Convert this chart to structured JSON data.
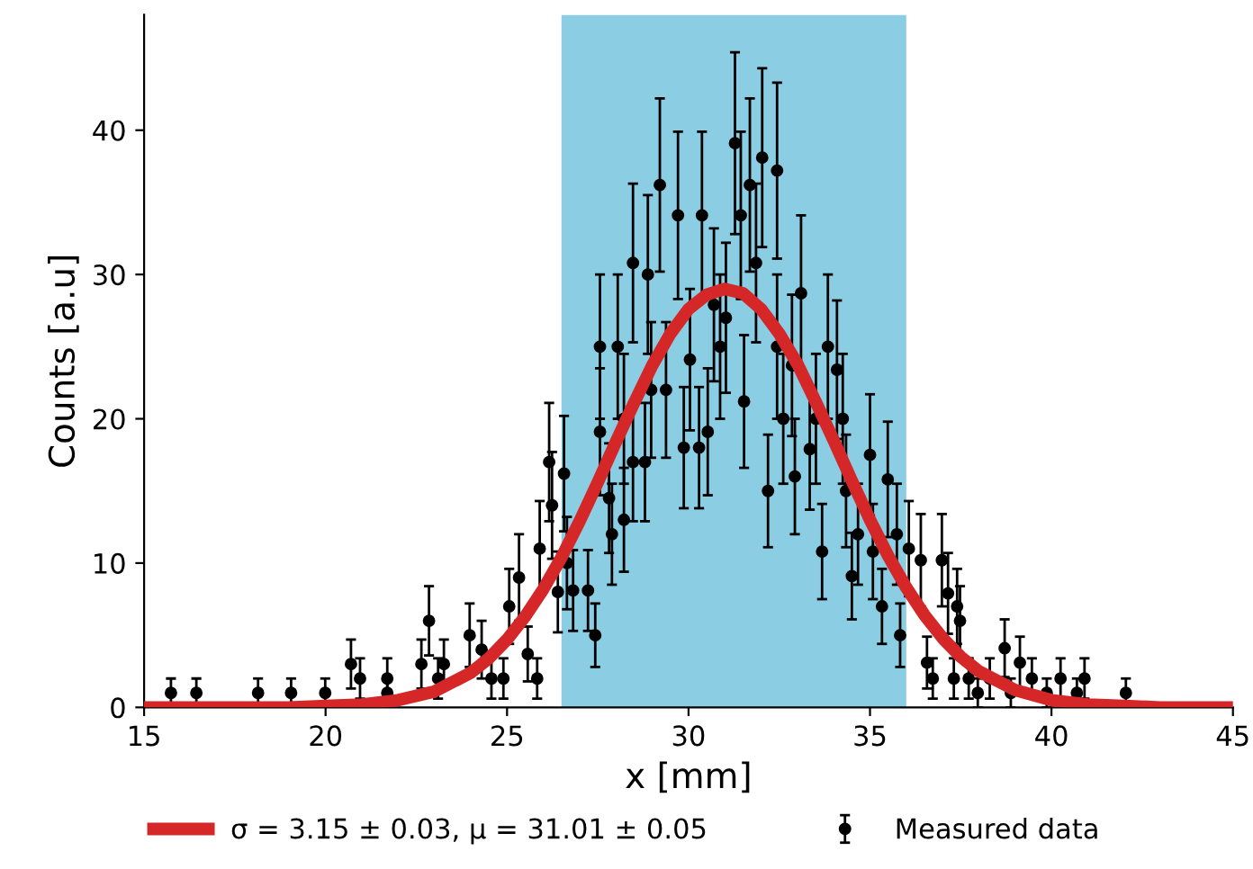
{
  "chart_data": {
    "type": "scatter",
    "xlabel": "x [mm]",
    "ylabel": "Counts [a.u]",
    "xlim": [
      15,
      45
    ],
    "xticks": [
      15,
      20,
      25,
      30,
      35,
      40,
      45
    ],
    "ylim": [
      0,
      48
    ],
    "yticks": [
      0,
      10,
      20,
      30,
      40
    ],
    "grid": false,
    "legend": "bottom",
    "bands": [
      {
        "axis": "x",
        "from": 26.5,
        "to": 36,
        "color": "#7ec8e0"
      }
    ],
    "series": [
      {
        "name": "σ = 3.15 ± 0.03, μ = 31.01 ± 0.05",
        "type": "line",
        "color": "#d62728",
        "line_style": "solid",
        "marker": "none",
        "x": [
          15,
          16,
          17,
          18,
          19,
          20,
          21,
          22,
          23,
          24,
          24.5,
          25,
          25.5,
          26,
          26.5,
          27,
          27.5,
          28,
          28.5,
          29,
          29.5,
          30,
          30.5,
          31,
          31.5,
          32,
          32.5,
          33,
          33.5,
          34,
          34.5,
          35,
          35.5,
          36,
          36.5,
          37,
          37.5,
          38,
          39,
          40,
          41,
          42,
          43,
          44,
          45
        ],
        "values": [
          0,
          0,
          0,
          0,
          0,
          0.1,
          0.2,
          0.5,
          1.1,
          2.4,
          3.4,
          4.7,
          6.3,
          8.2,
          10.4,
          12.9,
          15.6,
          18.4,
          21.1,
          23.7,
          25.9,
          27.6,
          28.6,
          29.0,
          28.7,
          27.6,
          25.9,
          23.8,
          21.2,
          18.5,
          15.7,
          13.0,
          10.5,
          8.3,
          6.4,
          4.8,
          3.5,
          2.5,
          1.2,
          0.5,
          0.2,
          0.1,
          0,
          0,
          0
        ]
      },
      {
        "name": "Measured data",
        "color": "#000000",
        "marker": "circle",
        "x": [
          15.74,
          16.44,
          18.14,
          19.05,
          19.99,
          20.7,
          20.95,
          21.7,
          21.7,
          22.64,
          22.85,
          23.1,
          23.26,
          23.97,
          24.3,
          24.57,
          24.9,
          25.06,
          25.33,
          25.57,
          25.83,
          25.9,
          26.16,
          26.24,
          26.4,
          26.57,
          26.65,
          26.82,
          27.23,
          27.43,
          27.56,
          27.56,
          27.81,
          27.89,
          28.05,
          28.22,
          28.22,
          28.47,
          28.47,
          28.8,
          28.88,
          28.97,
          29.21,
          29.38,
          29.71,
          29.87,
          30.04,
          30.29,
          30.37,
          30.53,
          30.7,
          30.87,
          31.03,
          31.28,
          31.44,
          31.53,
          31.69,
          31.86,
          32.03,
          32.19,
          32.44,
          32.44,
          32.61,
          32.85,
          32.93,
          33.1,
          33.34,
          33.51,
          33.68,
          33.84,
          34.09,
          34.25,
          34.34,
          34.5,
          34.67,
          35.0,
          35.08,
          35.33,
          35.49,
          35.74,
          35.83,
          36.07,
          36.4,
          36.57,
          36.73,
          36.98,
          37.15,
          37.31,
          37.4,
          37.48,
          37.72,
          37.97,
          38.3,
          38.71,
          38.88,
          39.13,
          39.46,
          39.87,
          40.25,
          40.7,
          40.91,
          42.05
        ],
        "values": [
          1,
          1,
          1,
          1,
          1,
          3,
          2,
          2,
          1,
          3,
          6,
          2,
          3,
          5,
          4,
          2,
          2,
          7,
          9,
          3.7,
          2,
          11,
          17,
          14,
          8,
          16.2,
          10,
          8.1,
          8.1,
          5,
          25,
          19.1,
          14.5,
          12,
          25,
          20,
          13,
          30.8,
          17,
          17,
          30,
          22,
          36.2,
          22,
          34.1,
          18,
          24.1,
          18,
          34.1,
          19.1,
          27.9,
          25,
          27,
          39.1,
          34.1,
          21.2,
          36.2,
          30.8,
          38.1,
          15,
          37.2,
          25,
          20,
          23.7,
          16,
          28.7,
          17.9,
          20,
          10.8,
          25,
          23.4,
          20,
          15,
          9.1,
          12,
          17.5,
          10.8,
          7,
          15.8,
          12,
          5,
          11,
          10.2,
          3.1,
          2,
          10.2,
          7.9,
          2,
          7,
          6,
          2,
          1,
          2,
          4.1,
          1,
          3.1,
          2,
          1,
          2,
          1,
          2,
          1
        ],
        "errors": [
          1,
          1,
          1,
          1,
          1,
          1.7,
          1.4,
          1.4,
          1,
          1.7,
          2.4,
          1.4,
          1.7,
          2.2,
          2,
          1.4,
          1.4,
          2.6,
          3,
          1.9,
          1.4,
          3.3,
          4.1,
          3.7,
          2.8,
          4,
          3.2,
          2.8,
          2.8,
          2.2,
          5,
          4.4,
          3.8,
          3.5,
          5,
          4.5,
          3.6,
          5.5,
          4.1,
          4.1,
          5.5,
          4.7,
          6,
          4.7,
          5.8,
          4.2,
          4.9,
          4.2,
          5.8,
          4.4,
          5.3,
          5,
          5.2,
          6.3,
          5.8,
          4.6,
          6,
          5.5,
          6.2,
          3.9,
          6.1,
          5,
          4.5,
          4.9,
          4,
          5.4,
          4.2,
          4.5,
          3.3,
          5,
          4.8,
          4.5,
          3.9,
          3,
          3.5,
          4.2,
          3.3,
          2.6,
          4,
          3.5,
          2.2,
          3.3,
          3.2,
          1.8,
          1.4,
          3.2,
          2.8,
          1.4,
          2.6,
          2.4,
          1.4,
          1,
          1.4,
          2,
          1,
          1.8,
          1.4,
          1,
          1.4,
          1,
          1.4,
          1
        ]
      }
    ]
  }
}
